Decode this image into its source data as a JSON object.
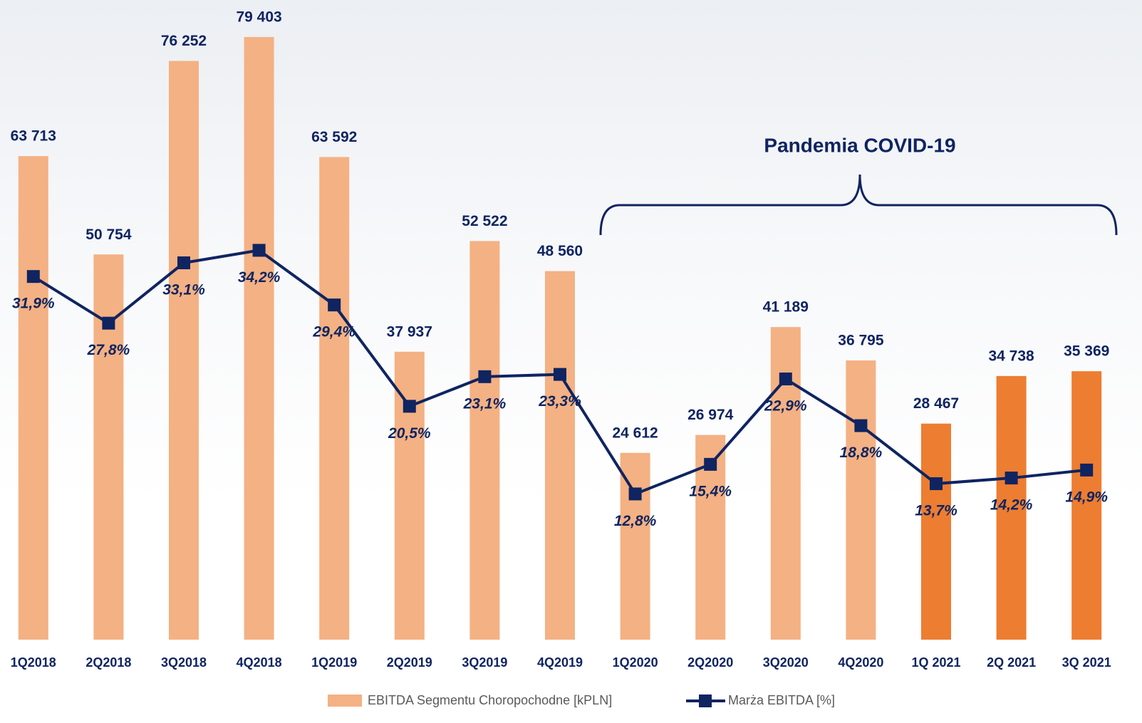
{
  "chart_data": {
    "type": "combo",
    "annotation": "Pandemia COVID-19",
    "categories": [
      "1Q2018",
      "2Q2018",
      "3Q2018",
      "4Q2018",
      "1Q2019",
      "2Q2019",
      "3Q2019",
      "4Q2019",
      "1Q2020",
      "2Q2020",
      "3Q2020",
      "4Q2020",
      "1Q 2021",
      "2Q 2021",
      "3Q 2021"
    ],
    "series": [
      {
        "name": "EBITDA Segmentu Choropochodne [kPLN]",
        "type": "bar",
        "color": "#f4b183",
        "colors": [
          "#f4b183",
          "#f4b183",
          "#f4b183",
          "#f4b183",
          "#f4b183",
          "#f4b183",
          "#f4b183",
          "#f4b183",
          "#f4b183",
          "#f4b183",
          "#f4b183",
          "#f4b183",
          "#ed7d31",
          "#ed7d31",
          "#ed7d31"
        ],
        "values": [
          63713,
          50754,
          76252,
          79403,
          63592,
          37937,
          52522,
          48560,
          24612,
          26974,
          41189,
          36795,
          28467,
          34738,
          35369
        ],
        "value_labels": [
          "63 713",
          "50 754",
          "76 252",
          "79 403",
          "63 592",
          "37 937",
          "52 522",
          "48 560",
          "24 612",
          "26 974",
          "41 189",
          "36 795",
          "28 467",
          "34 738",
          "35 369"
        ]
      },
      {
        "name": "Marża EBITDA [%]",
        "type": "line",
        "axis": "y2",
        "color": "#0f2461",
        "values": [
          31.9,
          27.8,
          33.1,
          34.2,
          29.4,
          20.5,
          23.1,
          23.3,
          12.8,
          15.4,
          22.9,
          18.8,
          13.7,
          14.2,
          14.9
        ],
        "value_labels": [
          "31,9%",
          "27,8%",
          "33,1%",
          "34,2%",
          "29,4%",
          "20,5%",
          "23,1%",
          "23,3%",
          "12,8%",
          "15,4%",
          "22,9%",
          "18,8%",
          "13,7%",
          "14,2%",
          "14,9%"
        ]
      }
    ],
    "ylim": [
      0,
      84000
    ],
    "y2lim": [
      0,
      56
    ]
  }
}
